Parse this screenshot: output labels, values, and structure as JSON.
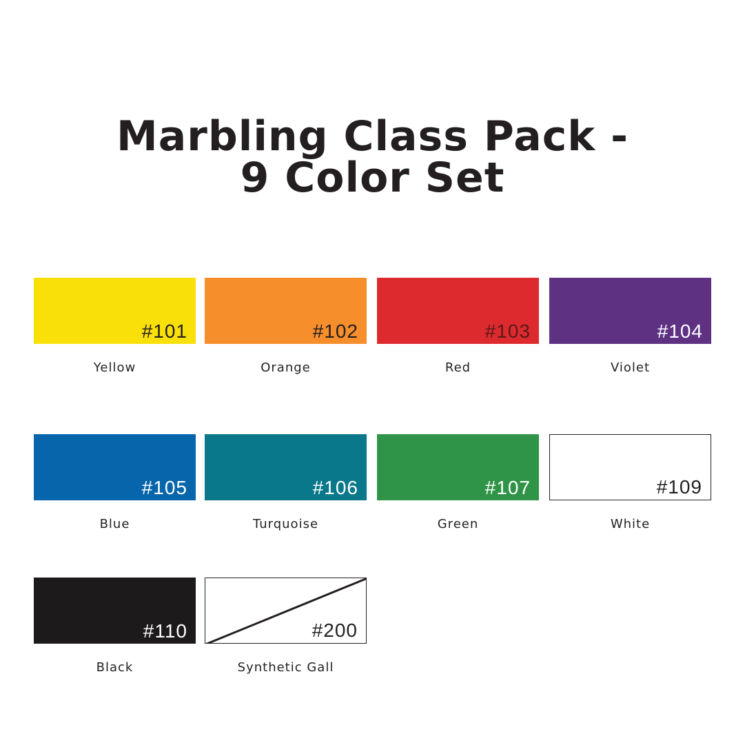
{
  "header": {
    "title_lines": [
      "Marbling Class Pack -",
      "9 Color Set"
    ]
  },
  "swatches": [
    {
      "code": "#101",
      "name": "Yellow",
      "color": "#f9e008",
      "text_color": "#231f20"
    },
    {
      "code": "#102",
      "name": "Orange",
      "color": "#f68e2b",
      "text_color": "#231f20"
    },
    {
      "code": "#103",
      "name": "Red",
      "color": "#dd2a2e",
      "text_color": "#5a1a1a"
    },
    {
      "code": "#104",
      "name": "Violet",
      "color": "#5e3183",
      "text_color": "#ffffff"
    },
    {
      "code": "#105",
      "name": "Blue",
      "color": "#0766ab",
      "text_color": "#ffffff"
    },
    {
      "code": "#106",
      "name": "Turquoise",
      "color": "#0a788b",
      "text_color": "#ffffff"
    },
    {
      "code": "#107",
      "name": "Green",
      "color": "#2f9447",
      "text_color": "#ffffff"
    },
    {
      "code": "#109",
      "name": "White",
      "color": "#ffffff",
      "text_color": "#231f20",
      "outlined": true
    },
    {
      "code": "#110",
      "name": "Black",
      "color": "#1c1a1b",
      "text_color": "#ffffff"
    },
    {
      "code": "#200",
      "name": "Synthetic Gall",
      "color": "#ffffff",
      "text_color": "#231f20",
      "outlined": true,
      "pattern": "diagonal"
    }
  ]
}
